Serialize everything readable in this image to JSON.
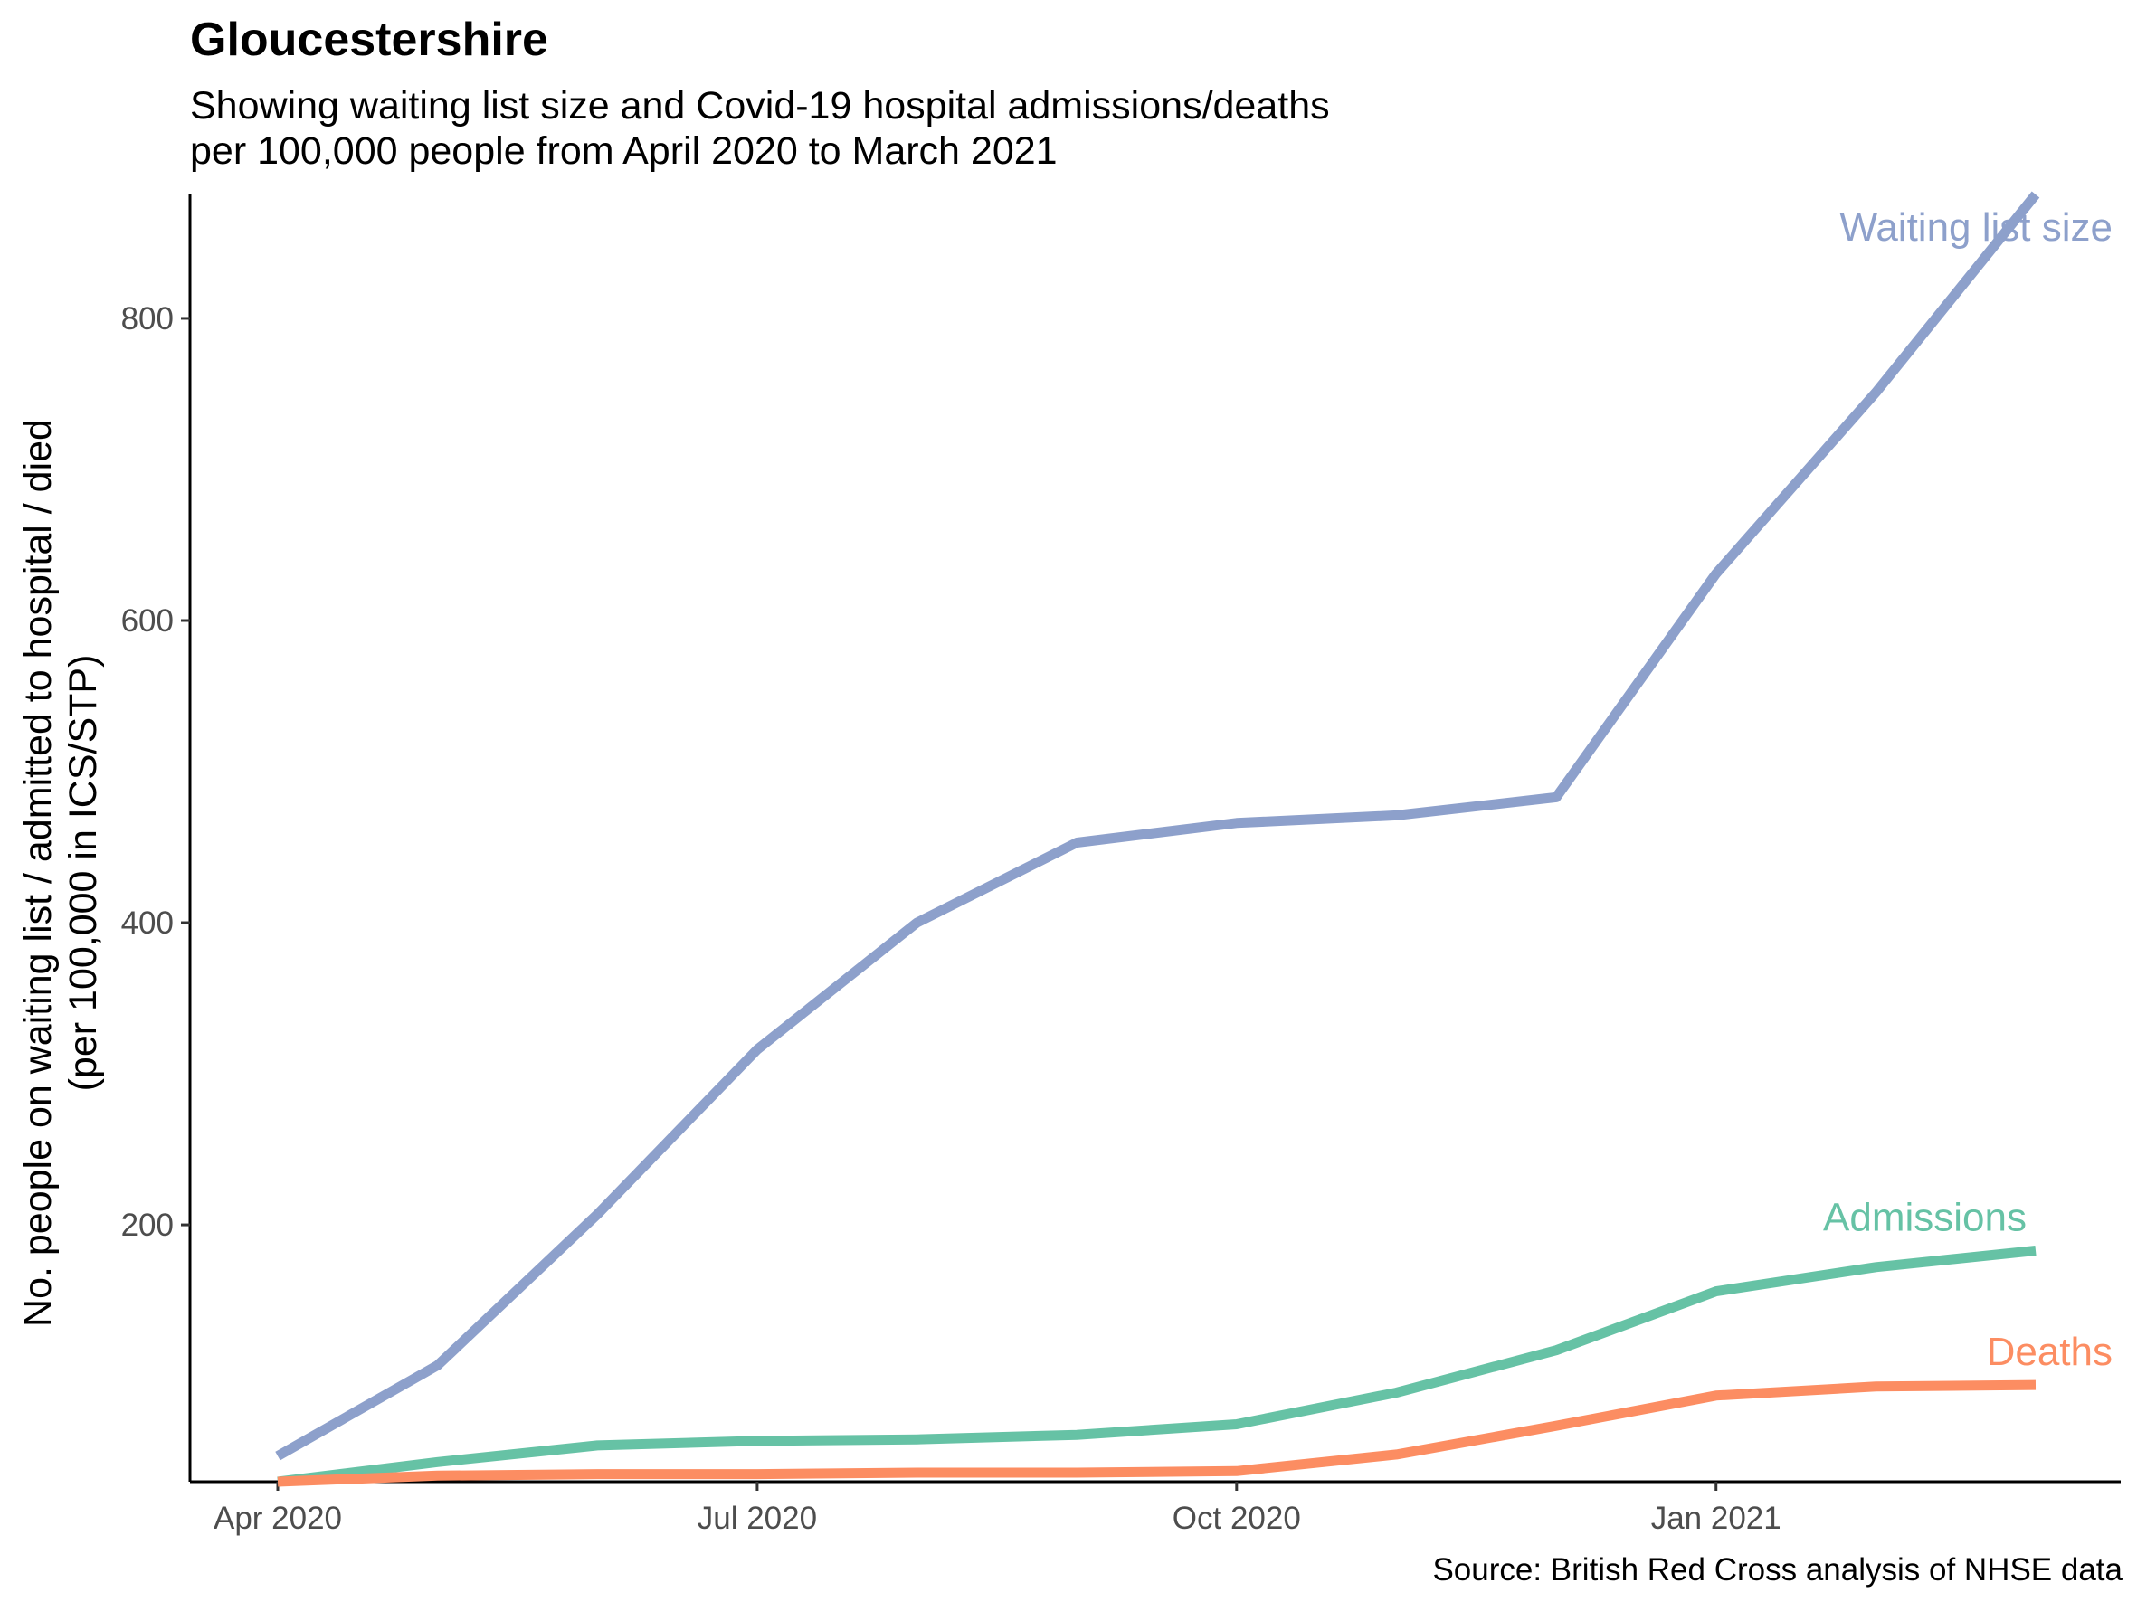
{
  "chart_data": {
    "type": "line",
    "title": "Gloucestershire",
    "subtitle_lines": [
      "Showing waiting list size and Covid-19 hospital admissions/deaths",
      "per 100,000 people from April 2020 to March 2021"
    ],
    "ylabel_lines": [
      "No. people on waiting list / admitted to hospital / died",
      "(per 100,000 in ICS/STP)"
    ],
    "xlabel": "",
    "caption": "Source: British Red Cross analysis of NHSE data",
    "x": [
      "2020-04",
      "2020-05",
      "2020-06",
      "2020-07",
      "2020-08",
      "2020-09",
      "2020-10",
      "2020-11",
      "2020-12",
      "2021-01",
      "2021-02",
      "2021-03"
    ],
    "x_ticks": [
      {
        "x": "2020-04",
        "label": "Apr 2020"
      },
      {
        "x": "2020-07",
        "label": "Jul 2020"
      },
      {
        "x": "2020-10",
        "label": "Oct 2020"
      },
      {
        "x": "2021-01",
        "label": "Jan 2021"
      }
    ],
    "y_ticks": [
      200,
      400,
      600,
      800
    ],
    "ylim": [
      30,
      882
    ],
    "grid": false,
    "series": [
      {
        "name": "Waiting list size",
        "color": "#8DA0CB",
        "values": [
          47,
          107,
          207,
          316,
          400,
          453,
          466,
          471,
          483,
          631,
          751,
          882
        ]
      },
      {
        "name": "Admissions",
        "color": "#66C2A5",
        "values": [
          30,
          43,
          54,
          57,
          58,
          61,
          68,
          89,
          117,
          156,
          172,
          183
        ]
      },
      {
        "name": "Deaths",
        "color": "#FC8D62",
        "values": [
          30,
          34,
          35,
          35,
          36,
          36,
          37,
          48,
          67,
          87,
          93,
          94
        ]
      }
    ]
  }
}
